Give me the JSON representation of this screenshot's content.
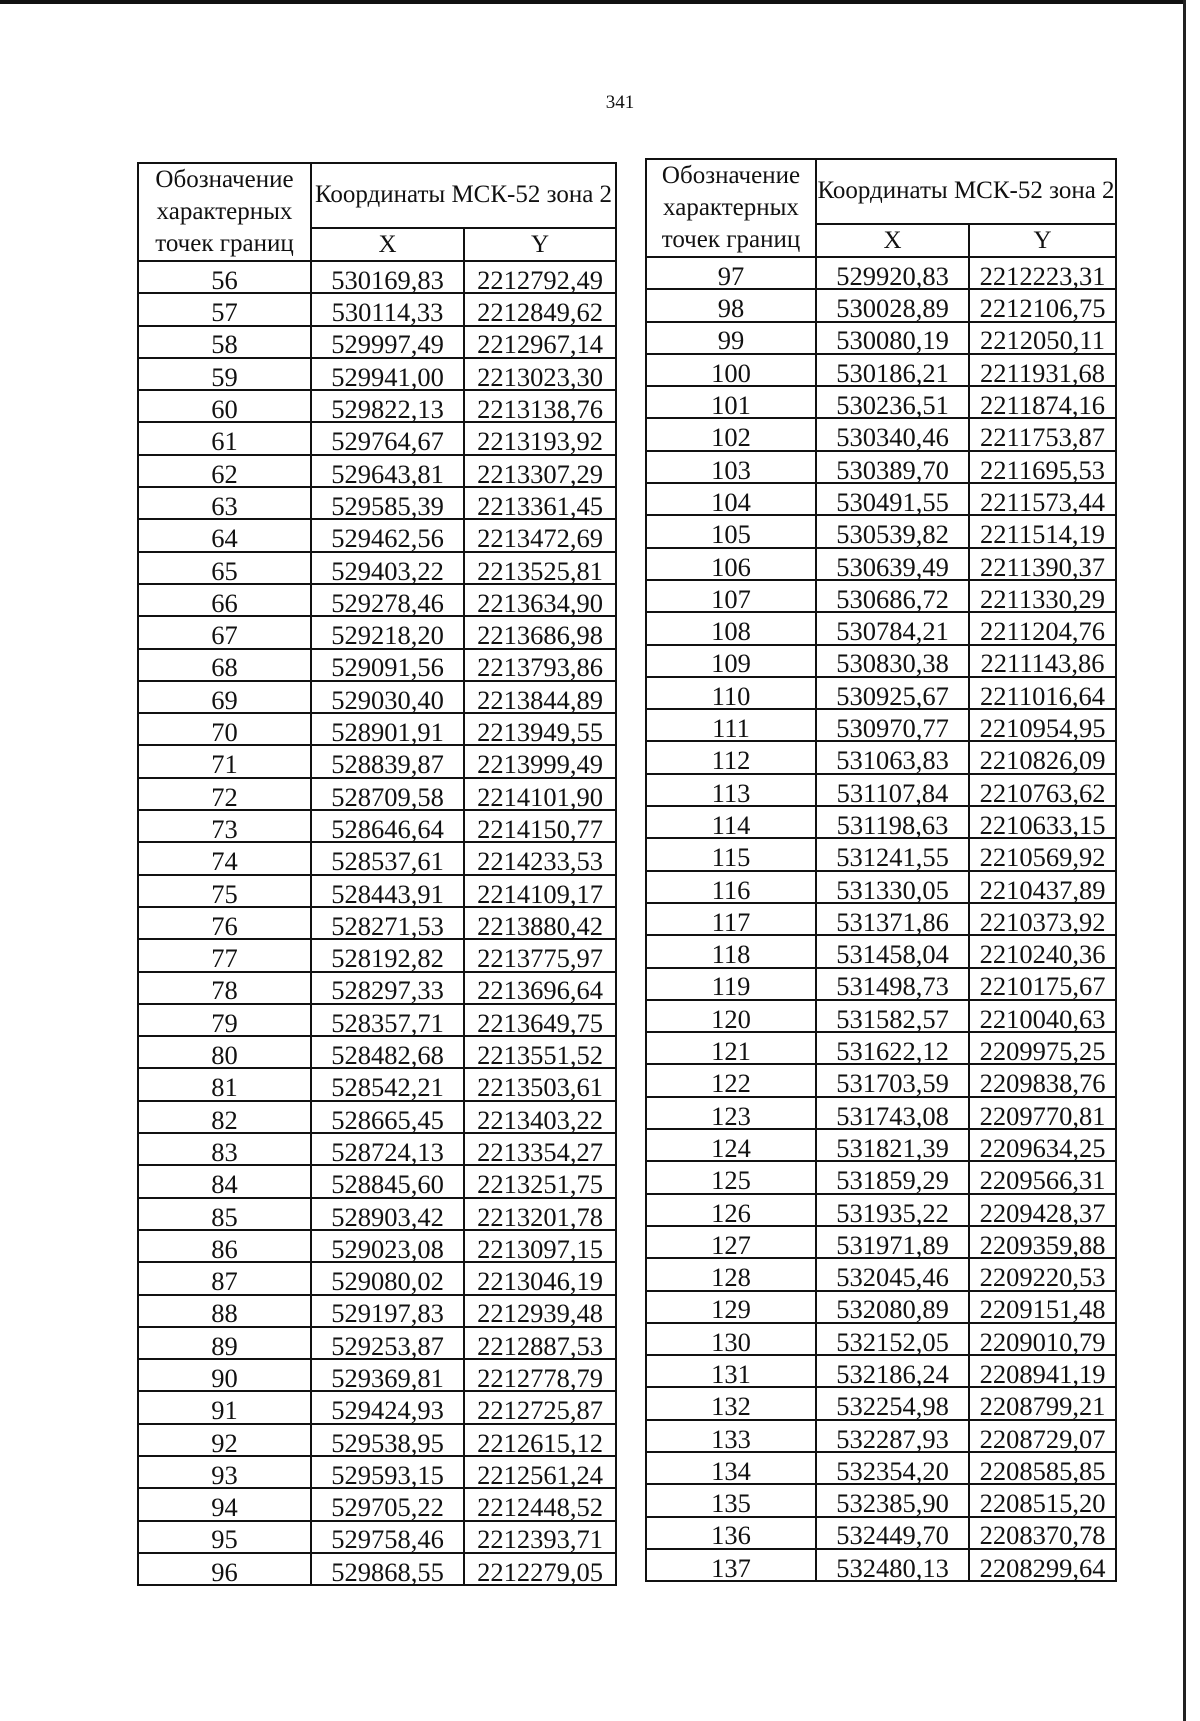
{
  "page_number": "341",
  "header": {
    "point_label": "Обозначение характерных точек границ",
    "coords_label": "Координаты МСК-52 зона 2",
    "x_label": "X",
    "y_label": "Y"
  },
  "tables": [
    {
      "rows": [
        [
          "56",
          "530169,83",
          "2212792,49"
        ],
        [
          "57",
          "530114,33",
          "2212849,62"
        ],
        [
          "58",
          "529997,49",
          "2212967,14"
        ],
        [
          "59",
          "529941,00",
          "2213023,30"
        ],
        [
          "60",
          "529822,13",
          "2213138,76"
        ],
        [
          "61",
          "529764,67",
          "2213193,92"
        ],
        [
          "62",
          "529643,81",
          "2213307,29"
        ],
        [
          "63",
          "529585,39",
          "2213361,45"
        ],
        [
          "64",
          "529462,56",
          "2213472,69"
        ],
        [
          "65",
          "529403,22",
          "2213525,81"
        ],
        [
          "66",
          "529278,46",
          "2213634,90"
        ],
        [
          "67",
          "529218,20",
          "2213686,98"
        ],
        [
          "68",
          "529091,56",
          "2213793,86"
        ],
        [
          "69",
          "529030,40",
          "2213844,89"
        ],
        [
          "70",
          "528901,91",
          "2213949,55"
        ],
        [
          "71",
          "528839,87",
          "2213999,49"
        ],
        [
          "72",
          "528709,58",
          "2214101,90"
        ],
        [
          "73",
          "528646,64",
          "2214150,77"
        ],
        [
          "74",
          "528537,61",
          "2214233,53"
        ],
        [
          "75",
          "528443,91",
          "2214109,17"
        ],
        [
          "76",
          "528271,53",
          "2213880,42"
        ],
        [
          "77",
          "528192,82",
          "2213775,97"
        ],
        [
          "78",
          "528297,33",
          "2213696,64"
        ],
        [
          "79",
          "528357,71",
          "2213649,75"
        ],
        [
          "80",
          "528482,68",
          "2213551,52"
        ],
        [
          "81",
          "528542,21",
          "2213503,61"
        ],
        [
          "82",
          "528665,45",
          "2213403,22"
        ],
        [
          "83",
          "528724,13",
          "2213354,27"
        ],
        [
          "84",
          "528845,60",
          "2213251,75"
        ],
        [
          "85",
          "528903,42",
          "2213201,78"
        ],
        [
          "86",
          "529023,08",
          "2213097,15"
        ],
        [
          "87",
          "529080,02",
          "2213046,19"
        ],
        [
          "88",
          "529197,83",
          "2212939,48"
        ],
        [
          "89",
          "529253,87",
          "2212887,53"
        ],
        [
          "90",
          "529369,81",
          "2212778,79"
        ],
        [
          "91",
          "529424,93",
          "2212725,87"
        ],
        [
          "92",
          "529538,95",
          "2212615,12"
        ],
        [
          "93",
          "529593,15",
          "2212561,24"
        ],
        [
          "94",
          "529705,22",
          "2212448,52"
        ],
        [
          "95",
          "529758,46",
          "2212393,71"
        ],
        [
          "96",
          "529868,55",
          "2212279,05"
        ]
      ]
    },
    {
      "rows": [
        [
          "97",
          "529920,83",
          "2212223,31"
        ],
        [
          "98",
          "530028,89",
          "2212106,75"
        ],
        [
          "99",
          "530080,19",
          "2212050,11"
        ],
        [
          "100",
          "530186,21",
          "2211931,68"
        ],
        [
          "101",
          "530236,51",
          "2211874,16"
        ],
        [
          "102",
          "530340,46",
          "2211753,87"
        ],
        [
          "103",
          "530389,70",
          "2211695,53"
        ],
        [
          "104",
          "530491,55",
          "2211573,44"
        ],
        [
          "105",
          "530539,82",
          "2211514,19"
        ],
        [
          "106",
          "530639,49",
          "2211390,37"
        ],
        [
          "107",
          "530686,72",
          "2211330,29"
        ],
        [
          "108",
          "530784,21",
          "2211204,76"
        ],
        [
          "109",
          "530830,38",
          "2211143,86"
        ],
        [
          "110",
          "530925,67",
          "2211016,64"
        ],
        [
          "111",
          "530970,77",
          "2210954,95"
        ],
        [
          "112",
          "531063,83",
          "2210826,09"
        ],
        [
          "113",
          "531107,84",
          "2210763,62"
        ],
        [
          "114",
          "531198,63",
          "2210633,15"
        ],
        [
          "115",
          "531241,55",
          "2210569,92"
        ],
        [
          "116",
          "531330,05",
          "2210437,89"
        ],
        [
          "117",
          "531371,86",
          "2210373,92"
        ],
        [
          "118",
          "531458,04",
          "2210240,36"
        ],
        [
          "119",
          "531498,73",
          "2210175,67"
        ],
        [
          "120",
          "531582,57",
          "2210040,63"
        ],
        [
          "121",
          "531622,12",
          "2209975,25"
        ],
        [
          "122",
          "531703,59",
          "2209838,76"
        ],
        [
          "123",
          "531743,08",
          "2209770,81"
        ],
        [
          "124",
          "531821,39",
          "2209634,25"
        ],
        [
          "125",
          "531859,29",
          "2209566,31"
        ],
        [
          "126",
          "531935,22",
          "2209428,37"
        ],
        [
          "127",
          "531971,89",
          "2209359,88"
        ],
        [
          "128",
          "532045,46",
          "2209220,53"
        ],
        [
          "129",
          "532080,89",
          "2209151,48"
        ],
        [
          "130",
          "532152,05",
          "2209010,79"
        ],
        [
          "131",
          "532186,24",
          "2208941,19"
        ],
        [
          "132",
          "532254,98",
          "2208799,21"
        ],
        [
          "133",
          "532287,93",
          "2208729,07"
        ],
        [
          "134",
          "532354,20",
          "2208585,85"
        ],
        [
          "135",
          "532385,90",
          "2208515,20"
        ],
        [
          "136",
          "532449,70",
          "2208370,78"
        ],
        [
          "137",
          "532480,13",
          "2208299,64"
        ]
      ]
    }
  ]
}
